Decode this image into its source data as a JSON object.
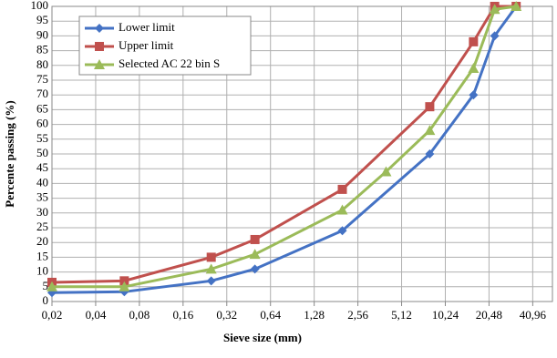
{
  "chart_data": {
    "type": "line",
    "log_x": true,
    "grid": true,
    "legend": "upper-left",
    "x_label": "Sieve size (mm)",
    "y_label": "Percente passing (%)",
    "xlim": [
      0.02,
      56
    ],
    "ylim": [
      0,
      100
    ],
    "xticks": [
      {
        "value": 0.02,
        "label": "0,02"
      },
      {
        "value": 0.04,
        "label": "0,04"
      },
      {
        "value": 0.08,
        "label": "0,08"
      },
      {
        "value": 0.16,
        "label": "0,16"
      },
      {
        "value": 0.32,
        "label": "0,32"
      },
      {
        "value": 0.64,
        "label": "0,64"
      },
      {
        "value": 1.28,
        "label": "1,28"
      },
      {
        "value": 2.56,
        "label": "2,56"
      },
      {
        "value": 5.12,
        "label": "5,12"
      },
      {
        "value": 10.24,
        "label": "10,24"
      },
      {
        "value": 20.48,
        "label": "20,48"
      },
      {
        "value": 40.96,
        "label": "40,96"
      }
    ],
    "yticks": [
      0,
      5,
      10,
      15,
      20,
      25,
      30,
      35,
      40,
      45,
      50,
      55,
      60,
      65,
      70,
      75,
      80,
      85,
      90,
      95,
      100
    ],
    "series": [
      {
        "name": "Lower limit",
        "color": "#4472c4",
        "marker": "diamond",
        "x": [
          0.02,
          0.063,
          0.25,
          0.5,
          2,
          8,
          16,
          22.4,
          31.5
        ],
        "values": [
          3,
          3.3,
          7,
          11,
          24,
          50,
          70,
          90,
          100
        ]
      },
      {
        "name": "Upper limit",
        "color": "#c0504d",
        "marker": "square",
        "x": [
          0.02,
          0.063,
          0.25,
          0.5,
          2,
          8,
          16,
          22.4,
          31.5
        ],
        "values": [
          6.5,
          7,
          15,
          21,
          38,
          66,
          88,
          100,
          100
        ]
      },
      {
        "name": "Selected AC 22 bin S",
        "color": "#9bbb59",
        "marker": "triangle",
        "x": [
          0.02,
          0.063,
          0.25,
          0.5,
          2,
          4,
          8,
          16,
          22.4,
          31.5
        ],
        "values": [
          5,
          5,
          11,
          16,
          31,
          44,
          58,
          79,
          99,
          100
        ]
      }
    ]
  }
}
